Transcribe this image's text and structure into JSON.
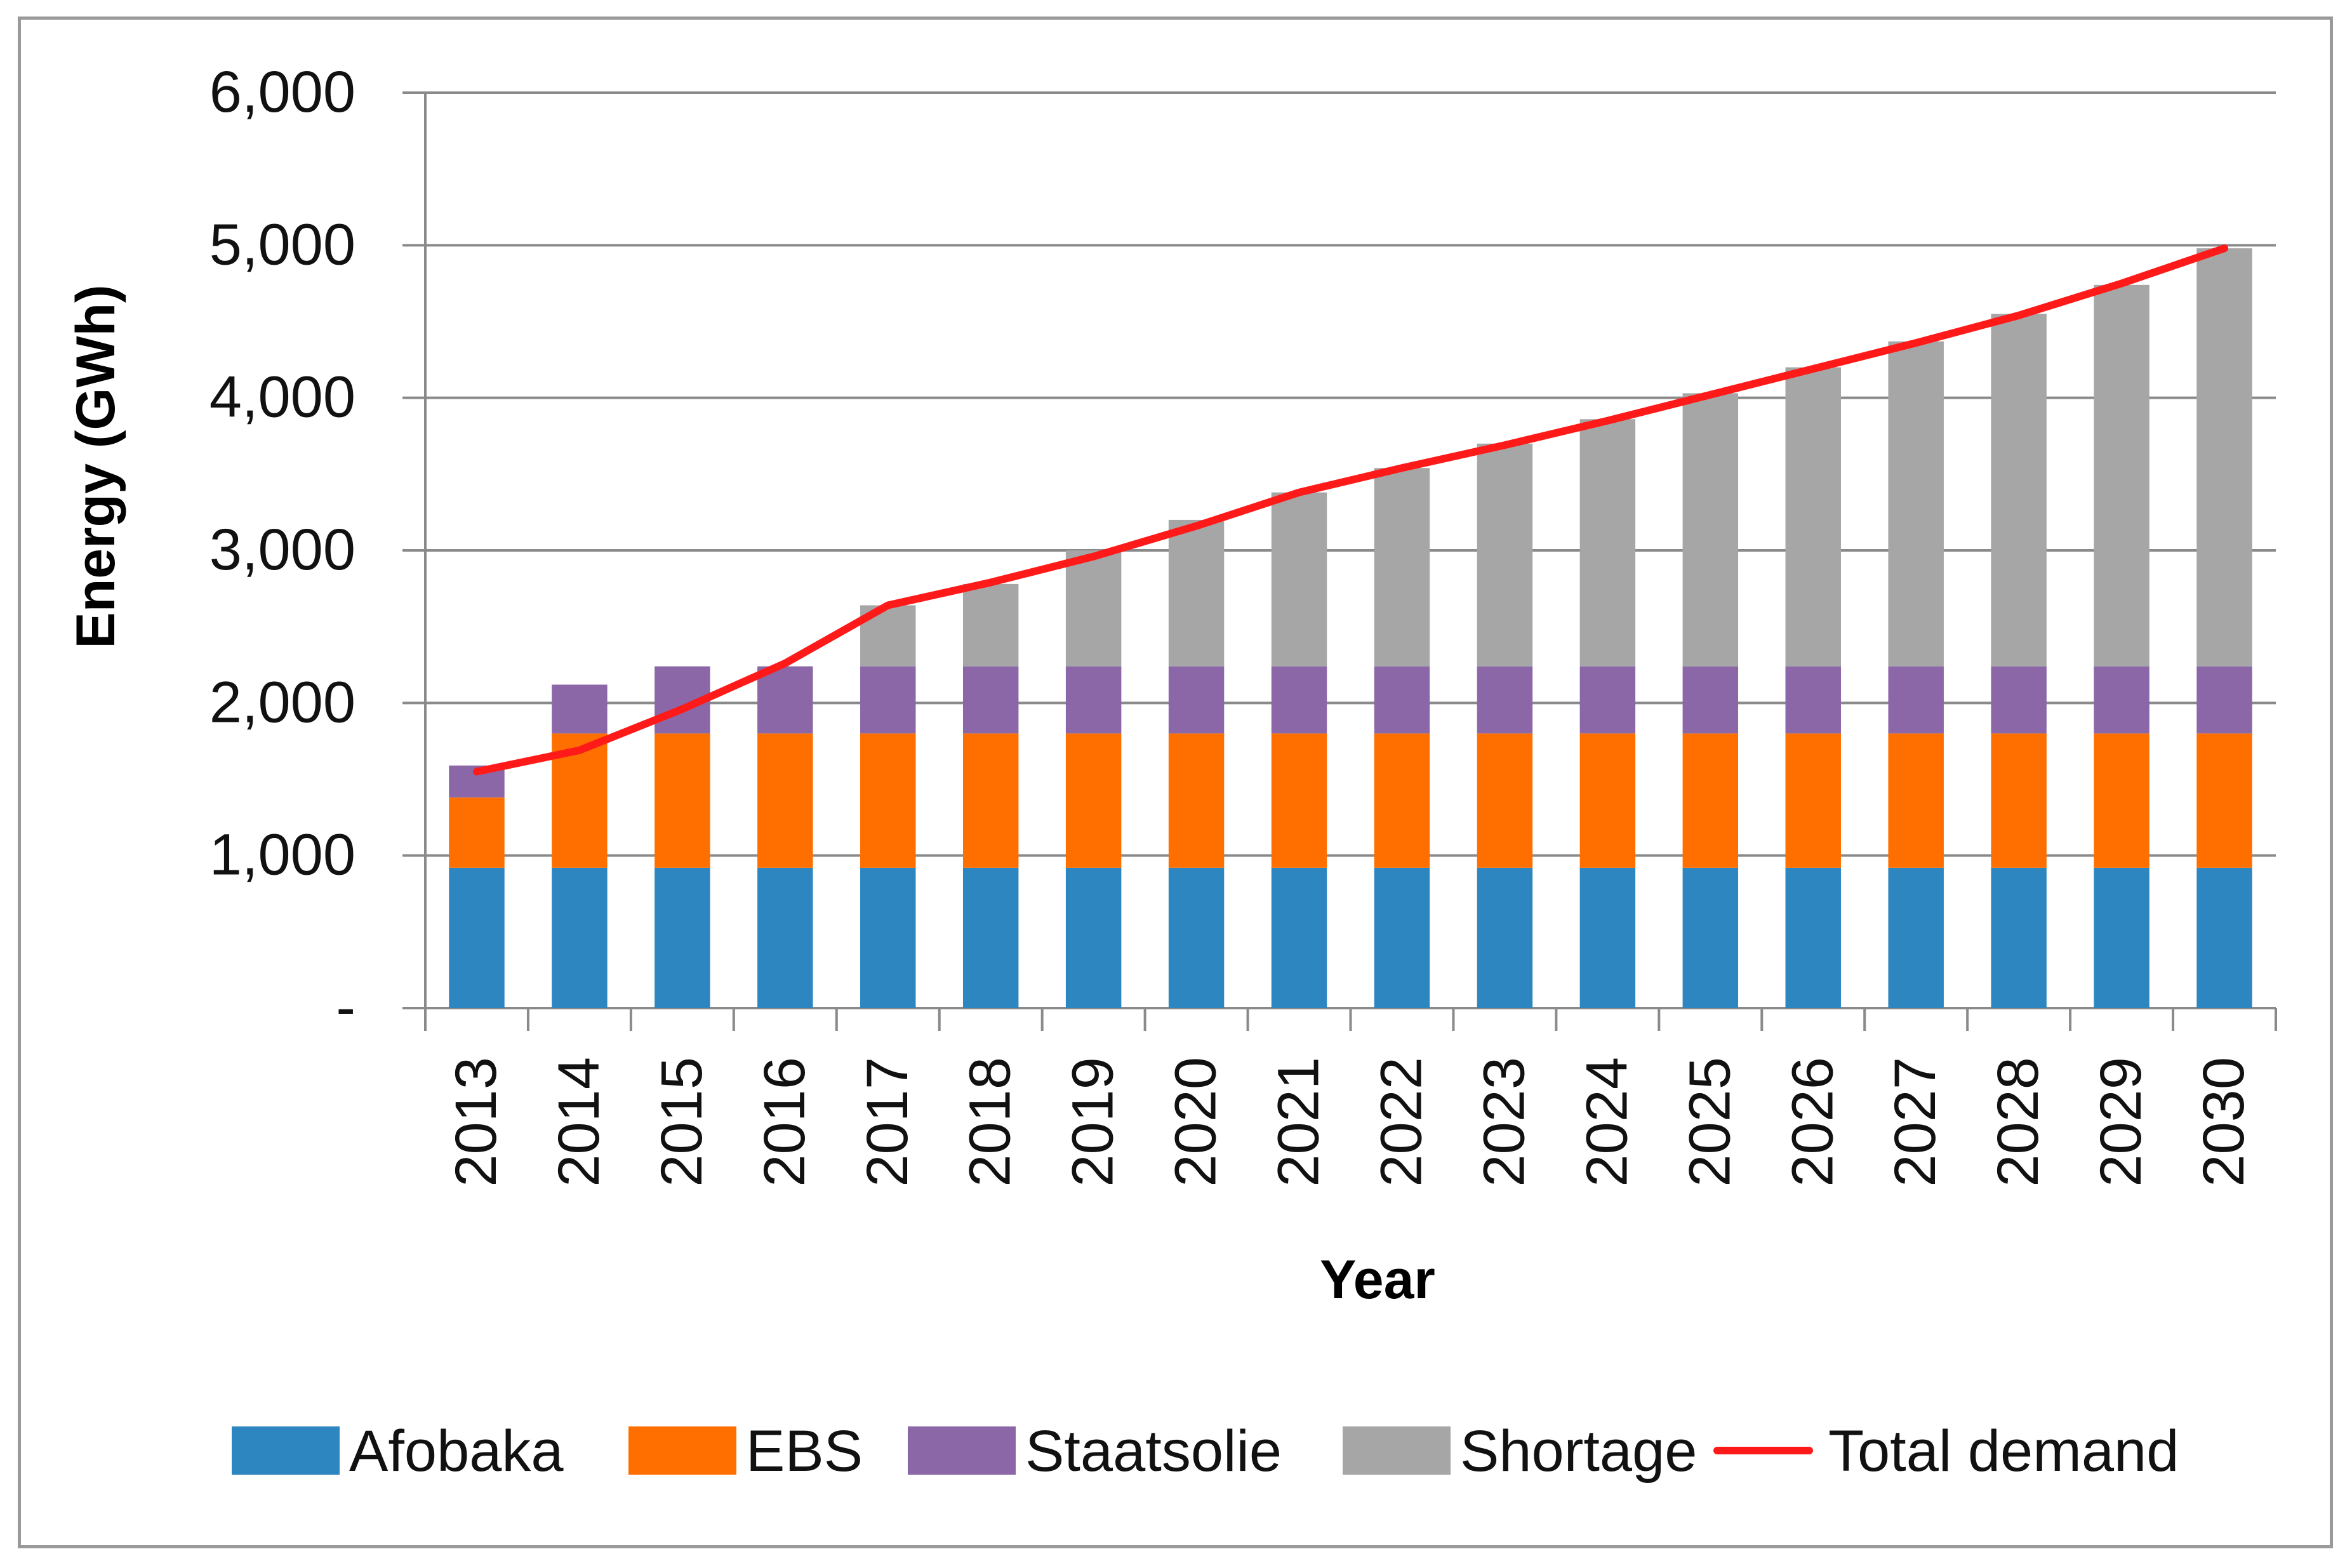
{
  "chart_data": {
    "type": "bar",
    "stacked": true,
    "title": "",
    "xlabel": "Year",
    "ylabel": "Energy (GWh)",
    "ylim": [
      0,
      6000
    ],
    "yticks": [
      0,
      1000,
      2000,
      3000,
      4000,
      5000,
      6000
    ],
    "ytick_labels": [
      "-",
      "1,000",
      "2,000",
      "3,000",
      "4,000",
      "5,000",
      "6,000"
    ],
    "grid": true,
    "legend_position": "bottom",
    "categories": [
      "2013",
      "2014",
      "2015",
      "2016",
      "2017",
      "2018",
      "2019",
      "2020",
      "2021",
      "2022",
      "2023",
      "2024",
      "2025",
      "2026",
      "2027",
      "2028",
      "2029",
      "2030"
    ],
    "series": [
      {
        "name": "Afobaka",
        "type": "bar",
        "color": "#2e86c1",
        "values": [
          920,
          920,
          920,
          920,
          920,
          920,
          920,
          920,
          920,
          920,
          920,
          920,
          920,
          920,
          920,
          920,
          920,
          920
        ]
      },
      {
        "name": "EBS",
        "type": "bar",
        "color": "#ff6f00",
        "values": [
          460,
          880,
          880,
          880,
          880,
          880,
          880,
          880,
          880,
          880,
          880,
          880,
          880,
          880,
          880,
          880,
          880,
          880
        ]
      },
      {
        "name": "Staatsolie",
        "type": "bar",
        "color": "#8b67a8",
        "values": [
          210,
          320,
          440,
          440,
          440,
          440,
          440,
          440,
          440,
          440,
          440,
          440,
          440,
          440,
          440,
          440,
          440,
          440
        ]
      },
      {
        "name": "Shortage",
        "type": "bar",
        "color": "#a6a6a6",
        "values": [
          0,
          0,
          0,
          0,
          400,
          540,
          760,
          960,
          1140,
          1300,
          1460,
          1620,
          1790,
          1960,
          2130,
          2310,
          2500,
          2740
        ]
      },
      {
        "name": "Total demand",
        "type": "line",
        "color": "#ff1a1a",
        "values": [
          1550,
          1690,
          1960,
          2260,
          2640,
          2790,
          2960,
          3160,
          3380,
          3540,
          3690,
          3850,
          4020,
          4190,
          4360,
          4540,
          4750,
          4980
        ]
      }
    ]
  }
}
